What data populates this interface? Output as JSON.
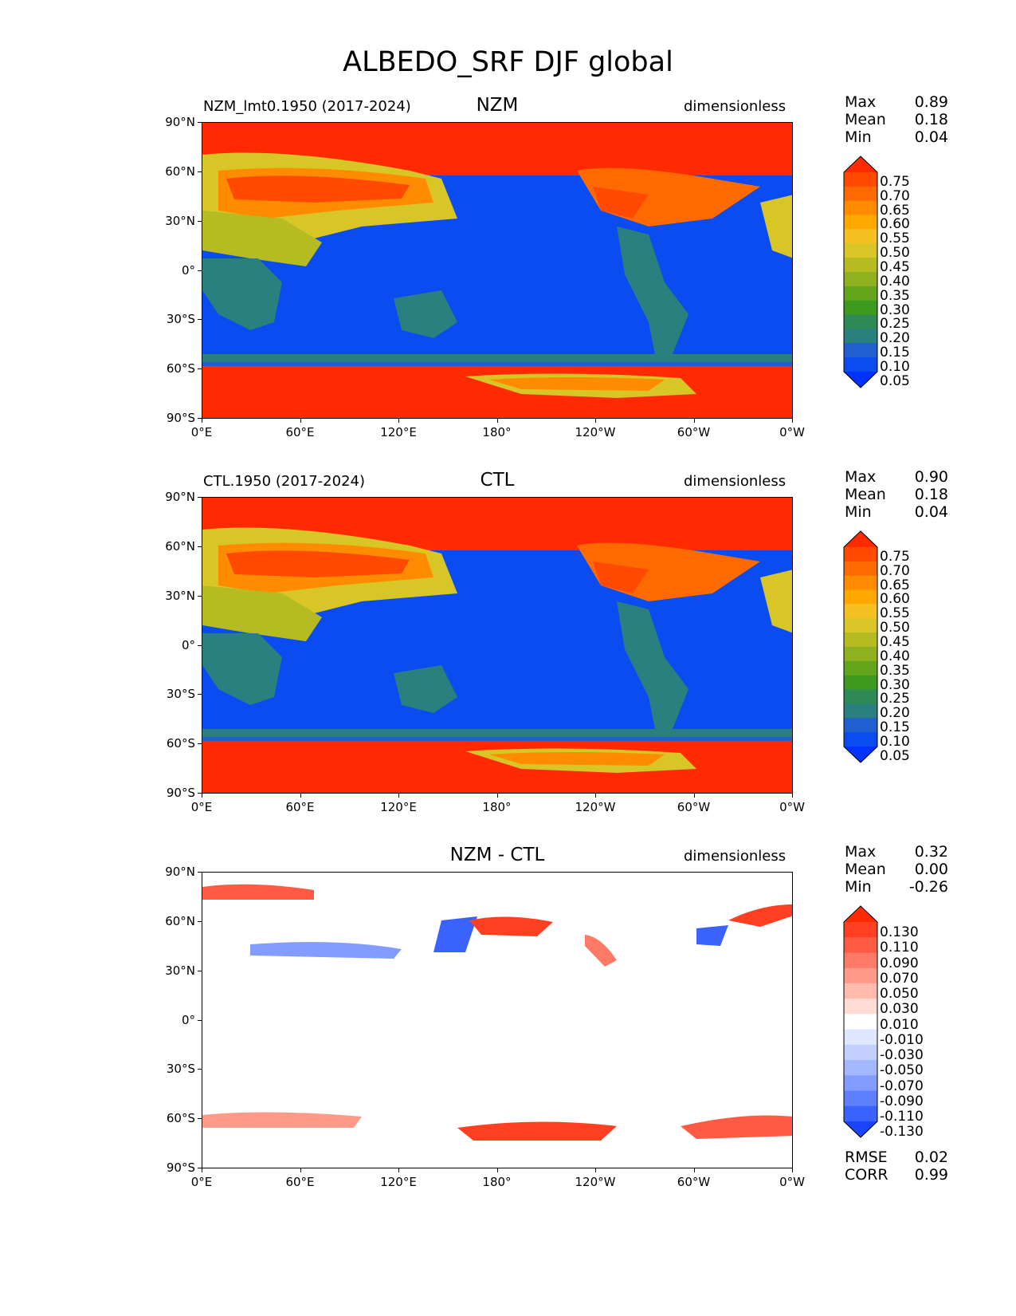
{
  "title": "ALBEDO_SRF DJF global",
  "panels": [
    {
      "left_label": "NZM_lmt0.1950 (2017-2024)",
      "center_label": "NZM",
      "units": "dimensionless",
      "stats": [
        {
          "name": "Max",
          "value": "0.89"
        },
        {
          "name": "Mean",
          "value": "0.18"
        },
        {
          "name": "Min",
          "value": "0.04"
        }
      ]
    },
    {
      "left_label": "CTL.1950 (2017-2024)",
      "center_label": "CTL",
      "units": "dimensionless",
      "stats": [
        {
          "name": "Max",
          "value": "0.90"
        },
        {
          "name": "Mean",
          "value": "0.18"
        },
        {
          "name": "Min",
          "value": "0.04"
        }
      ]
    },
    {
      "left_label": "",
      "center_label": "NZM - CTL",
      "units": "dimensionless",
      "stats": [
        {
          "name": "Max",
          "value": "0.32"
        },
        {
          "name": "Mean",
          "value": "0.00"
        },
        {
          "name": "Min",
          "value": "-0.26"
        }
      ]
    }
  ],
  "metrics": [
    {
      "name": "RMSE",
      "value": "0.02"
    },
    {
      "name": "CORR",
      "value": "0.99"
    }
  ],
  "axes": {
    "lat_labels": [
      "90°N",
      "60°N",
      "30°N",
      "0°",
      "30°S",
      "60°S",
      "90°S"
    ],
    "lon_labels": [
      "0°E",
      "60°E",
      "120°E",
      "180°",
      "120°W",
      "60°W",
      "0°W"
    ]
  },
  "colorbar_main": {
    "levels": [
      "0.75",
      "0.70",
      "0.65",
      "0.60",
      "0.55",
      "0.50",
      "0.45",
      "0.40",
      "0.35",
      "0.30",
      "0.25",
      "0.20",
      "0.15",
      "0.10",
      "0.05"
    ],
    "colors": [
      "#ff2a00",
      "#ff4a00",
      "#ff6a00",
      "#ff8c00",
      "#ffa800",
      "#f5c021",
      "#d8c526",
      "#b7bb22",
      "#8fb01f",
      "#63a51b",
      "#3d9a1f",
      "#2e8a55",
      "#2a7f7f",
      "#1f5fd0",
      "#0a4cf0",
      "#0033ff"
    ]
  },
  "colorbar_diff": {
    "levels": [
      "0.130",
      "0.110",
      "0.090",
      "0.070",
      "0.050",
      "0.030",
      "0.010",
      "-0.010",
      "-0.030",
      "-0.050",
      "-0.070",
      "-0.090",
      "-0.110",
      "-0.130"
    ],
    "colors": [
      "#ff2a00",
      "#ff3f22",
      "#ff5a44",
      "#ff7a66",
      "#ff9a88",
      "#ffbcae",
      "#ffdcd4",
      "#ffffff",
      "#dfe6ff",
      "#c3d0ff",
      "#a4b8ff",
      "#829dff",
      "#5d80ff",
      "#3a62ff",
      "#1a44ff"
    ]
  }
}
